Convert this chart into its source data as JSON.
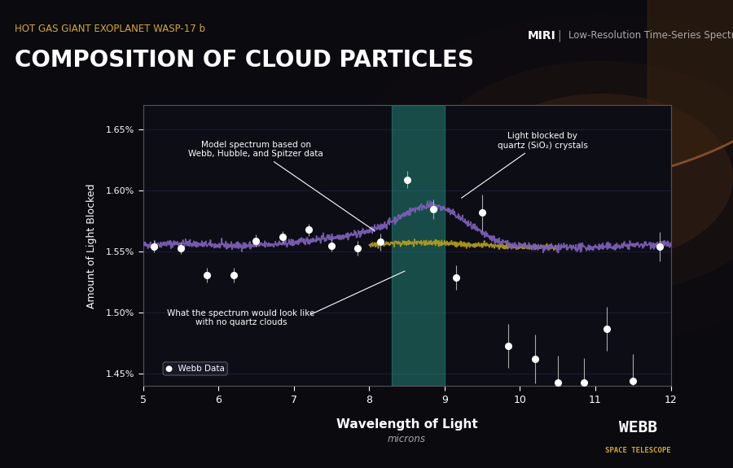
{
  "title_top": "HOT GAS GIANT EXOPLANET WASP-17 b",
  "title_main": "COMPOSITION OF CLOUD PARTICLES",
  "subtitle_right1": "MIRI",
  "subtitle_right2": "Low-Resolution Time-Series Spectroscopy",
  "bg_color": "#0a0a0f",
  "plot_bg_color": "#0d0d16",
  "xlabel": "Wavelength of Light",
  "xlabel_sub": "microns",
  "ylabel": "Amount of Light Blocked",
  "xlim": [
    5,
    12
  ],
  "ylim": [
    1.44,
    1.67
  ],
  "yticks": [
    1.45,
    1.5,
    1.55,
    1.6,
    1.65
  ],
  "ytick_labels": [
    "1.45%",
    "1.50%",
    "1.55%",
    "1.60%",
    "1.65%"
  ],
  "xticks": [
    5,
    6,
    7,
    8,
    9,
    10,
    11,
    12
  ],
  "annotation1": "Model spectrum based on\nWebb, Hubble, and Spitzer data",
  "annotation2": "Light blocked by\nquartz (SiO₂) crystals",
  "annotation3": "What the spectrum would look like\nwith no quartz clouds",
  "legend_label": "Webb Data",
  "teal_region": [
    8.3,
    9.0
  ],
  "purple_color": "#7b5fb5",
  "gold_color": "#b8a020",
  "data_color": "#ffffff",
  "webb_data_x": [
    5.15,
    5.5,
    5.85,
    6.2,
    6.5,
    6.85,
    7.2,
    7.5,
    7.85,
    8.15,
    8.5,
    8.85,
    9.15,
    9.5,
    9.85,
    10.2,
    10.5,
    10.85,
    11.15,
    11.5,
    11.85
  ],
  "webb_data_y": [
    1.5545,
    1.553,
    1.531,
    1.531,
    1.559,
    1.562,
    1.568,
    1.555,
    1.553,
    1.558,
    1.609,
    1.585,
    1.529,
    1.582,
    1.473,
    1.462,
    1.443,
    1.443,
    1.487,
    1.444,
    1.554
  ],
  "webb_data_yerr": [
    0.005,
    0.005,
    0.006,
    0.006,
    0.005,
    0.005,
    0.005,
    0.005,
    0.006,
    0.007,
    0.007,
    0.008,
    0.01,
    0.015,
    0.018,
    0.02,
    0.022,
    0.02,
    0.018,
    0.022,
    0.012
  ]
}
